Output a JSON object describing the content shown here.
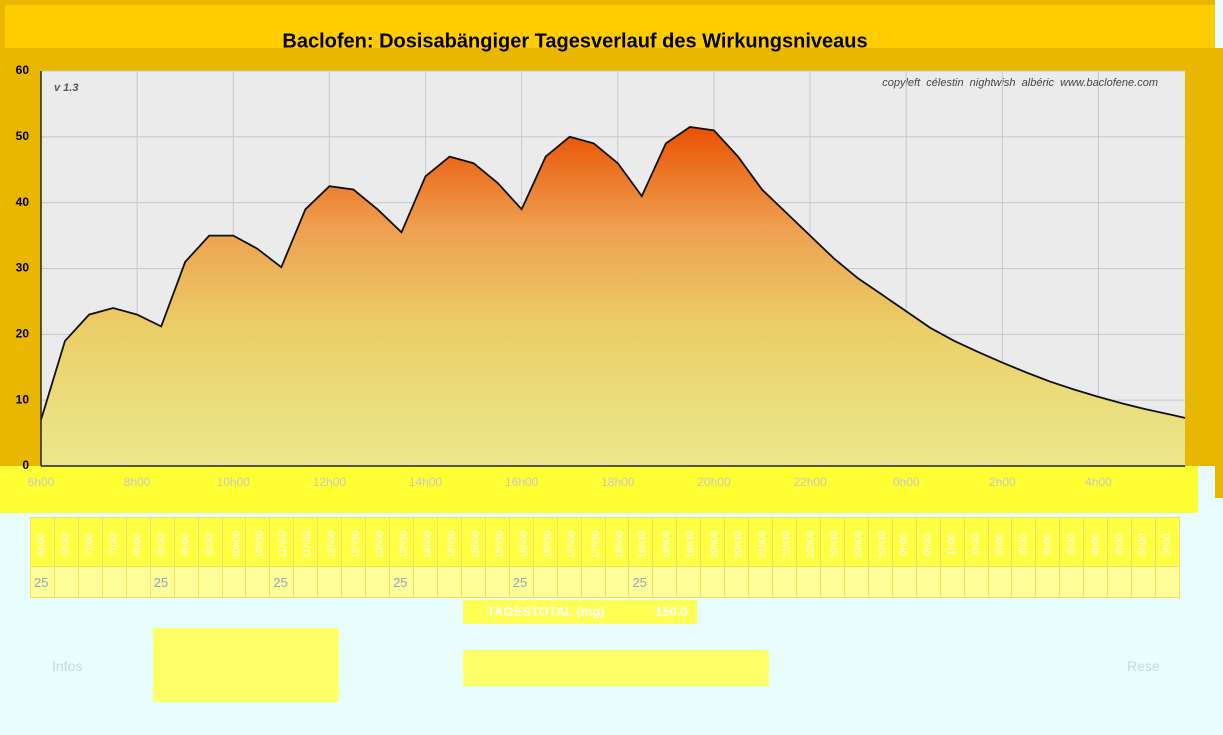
{
  "chart_data": {
    "type": "area",
    "title": "Baclofen: Dosisabängiger Tagesverlauf des Wirkungsniveaus",
    "annotations": [
      "v 1.3",
      "copyleft  célestin  nightwish  albéric  www.baclofene.com"
    ],
    "x": [
      0,
      0.5,
      1,
      1.5,
      2,
      2.5,
      3,
      3.5,
      4,
      4.5,
      5,
      5.5,
      6,
      6.5,
      7,
      7.5,
      8,
      8.5,
      9,
      9.5,
      10,
      10.5,
      11,
      11.5,
      12,
      12.5,
      13,
      13.5,
      14,
      14.5,
      15,
      15.5,
      16,
      16.5,
      17,
      17.5,
      18,
      18.5,
      19,
      19.5,
      20,
      20.5,
      21,
      21.5,
      22,
      22.5,
      23,
      23.5,
      23.8
    ],
    "values": [
      7,
      19,
      23,
      24,
      23,
      21.2,
      31,
      35,
      35,
      33,
      30.2,
      39,
      42.5,
      42,
      39,
      35.5,
      44,
      47,
      46,
      43,
      39,
      47,
      50,
      49,
      46,
      41,
      49,
      51.5,
      51,
      47,
      42,
      38.5,
      35,
      31.5,
      28.5,
      26,
      23.5,
      21,
      19,
      17.3,
      15.7,
      14.2,
      12.8,
      11.6,
      10.5,
      9.5,
      8.6,
      7.8,
      7.3
    ],
    "color": "#e85a00",
    "xlim": [
      0,
      23.8
    ],
    "ylim": [
      0,
      60
    ],
    "yticks": [
      0,
      10,
      20,
      30,
      40,
      50,
      60
    ],
    "xticks": [
      {
        "value": 0,
        "label": "6h00"
      },
      {
        "value": 2,
        "label": "8h00"
      },
      {
        "value": 4,
        "label": "10h00"
      },
      {
        "value": 6,
        "label": "12h00"
      },
      {
        "value": 8,
        "label": "14h00"
      },
      {
        "value": 10,
        "label": "16h00"
      },
      {
        "value": 12,
        "label": "18h00"
      },
      {
        "value": 14,
        "label": "20h00"
      },
      {
        "value": 16,
        "label": "22h00"
      },
      {
        "value": 18,
        "label": "0h00"
      },
      {
        "value": 20,
        "label": "2h00"
      },
      {
        "value": 22,
        "label": "4h00"
      }
    ],
    "grid": true
  },
  "table": {
    "headers": [
      "6h00",
      "6h30",
      "7h00",
      "7h30",
      "8h00",
      "8h30",
      "9h00",
      "9h30",
      "10h00",
      "10h30",
      "11h00",
      "11h30",
      "12h00",
      "12h30",
      "13h00",
      "13h30",
      "14h00",
      "14h30",
      "15h00",
      "15h30",
      "16h00",
      "16h30",
      "17h00",
      "17h30",
      "18h00",
      "18h30",
      "19h00",
      "19h30",
      "20h00",
      "20h30",
      "21h00",
      "21h30",
      "22h00",
      "22h30",
      "23h00",
      "23h30",
      "0h00",
      "0h30",
      "1h00",
      "1h30",
      "2h00",
      "2h30",
      "3h00",
      "3h30",
      "4h00",
      "4h30",
      "5h00",
      "5h30"
    ],
    "doses": [
      25,
      null,
      null,
      null,
      null,
      25,
      null,
      null,
      null,
      null,
      25,
      null,
      null,
      null,
      null,
      25,
      null,
      null,
      null,
      null,
      25,
      null,
      null,
      null,
      null,
      25,
      null,
      null,
      null,
      null,
      null,
      null,
      null,
      null,
      null,
      null,
      null,
      null,
      null,
      null,
      null,
      null,
      null,
      null,
      null,
      null,
      null,
      null
    ],
    "total_label": "TAGESTOTAL (mg)",
    "total_value": "150.0"
  },
  "buttons": {
    "infos": "Infos",
    "reset": "Rese"
  }
}
